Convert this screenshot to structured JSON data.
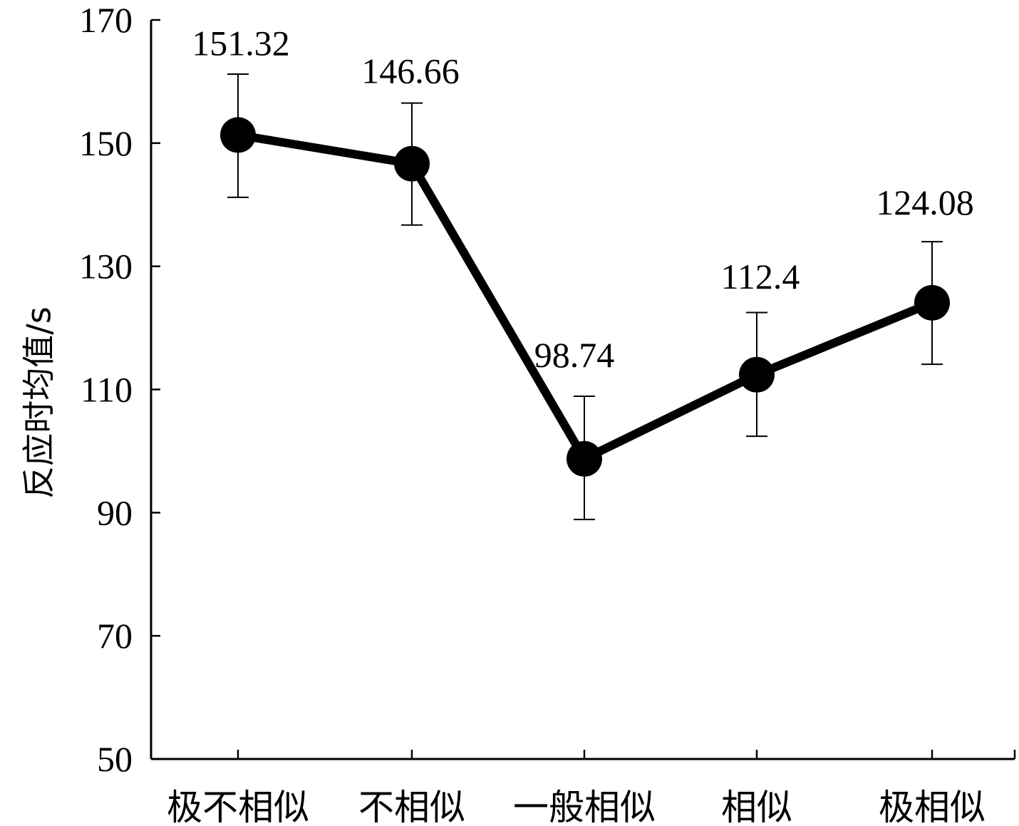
{
  "chart_data": {
    "type": "line",
    "title": "",
    "xlabel": "",
    "ylabel": "反应时均值/s",
    "categories": [
      "极不相似",
      "不相似",
      "一般相似",
      "相似",
      "极相似"
    ],
    "values": [
      151.32,
      146.66,
      98.74,
      112.4,
      124.08
    ],
    "data_labels": [
      "151.32",
      "146.66",
      "98.74",
      "112.4",
      "124.08"
    ],
    "error_bars": [
      {
        "low": 141.2,
        "high": 161.2
      },
      {
        "low": 136.7,
        "high": 156.5
      },
      {
        "low": 88.9,
        "high": 108.9
      },
      {
        "low": 102.4,
        "high": 122.5
      },
      {
        "low": 114.1,
        "high": 134.0
      }
    ],
    "ylim": [
      50,
      170
    ],
    "yticks": [
      50,
      70,
      90,
      110,
      130,
      150,
      170
    ],
    "grid": false,
    "legend": "none",
    "colors": {
      "line": "#000000",
      "marker": "#000000",
      "axis": "#000000"
    }
  }
}
